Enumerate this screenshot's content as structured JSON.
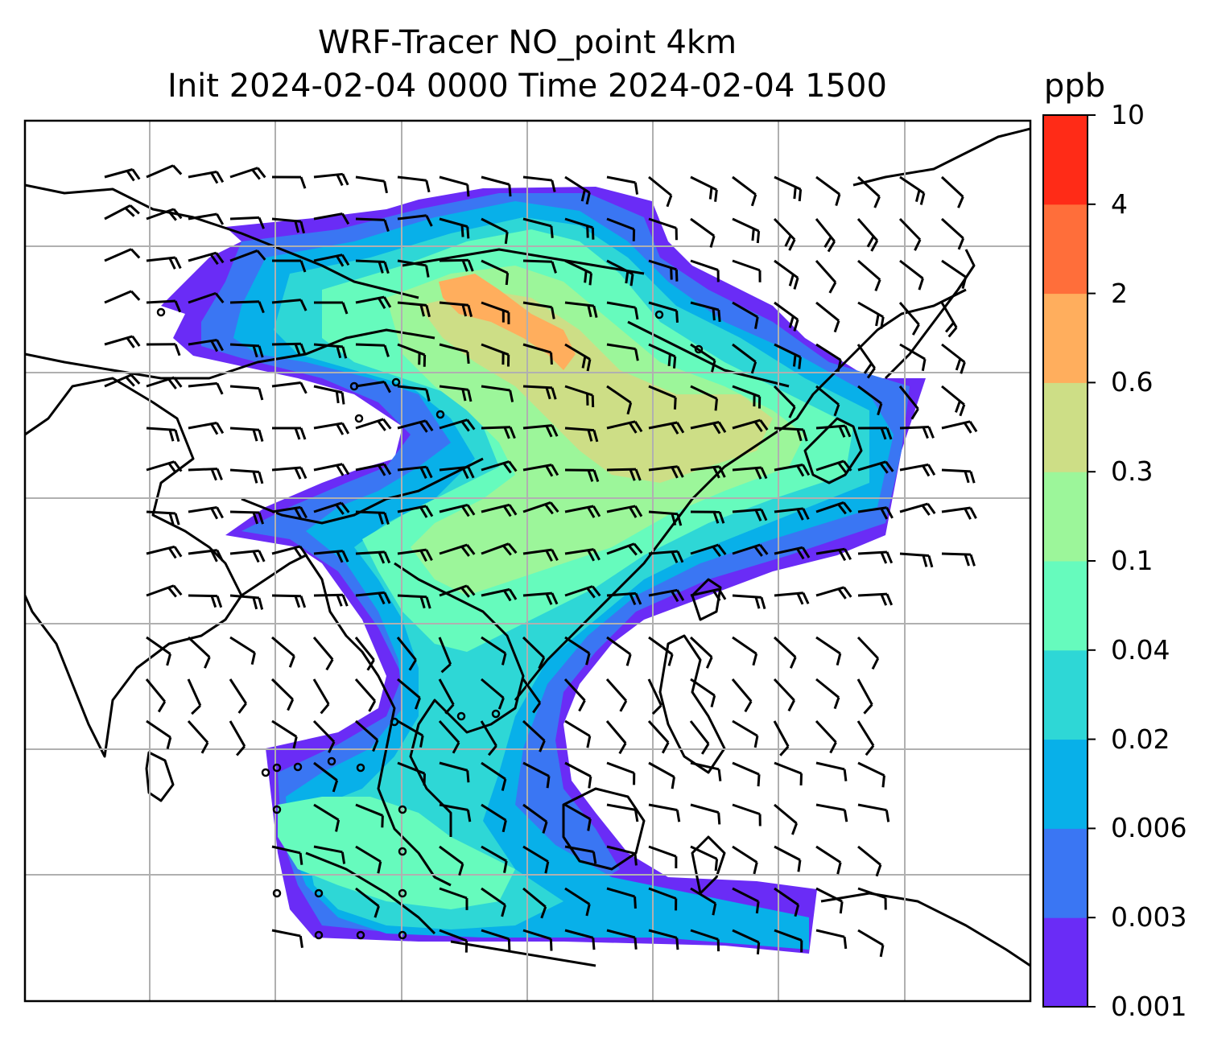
{
  "title": {
    "line1": "WRF-Tracer NO_point 4km",
    "line2": "Init 2024-02-04 0000 Time 2024-02-04 1500"
  },
  "colorbar": {
    "unit": "ppb",
    "ticks": [
      "10",
      "4",
      "2",
      "0.6",
      "0.3",
      "0.1",
      "0.04",
      "0.02",
      "0.006",
      "0.003",
      "0.001"
    ],
    "colors": [
      "#6a2cf6",
      "#3a76f3",
      "#08b0e9",
      "#2ed7d6",
      "#66fbbd",
      "#9cf69a",
      "#cdde86",
      "#ffae5d",
      "#ff6e3a",
      "#ff2b17"
    ]
  },
  "map": {
    "layers": [
      "tracer-concentration-fill",
      "wind-barbs",
      "coastlines",
      "gridlines"
    ],
    "frame_color": "#000000",
    "grid_color": "#b0b0b0"
  }
}
